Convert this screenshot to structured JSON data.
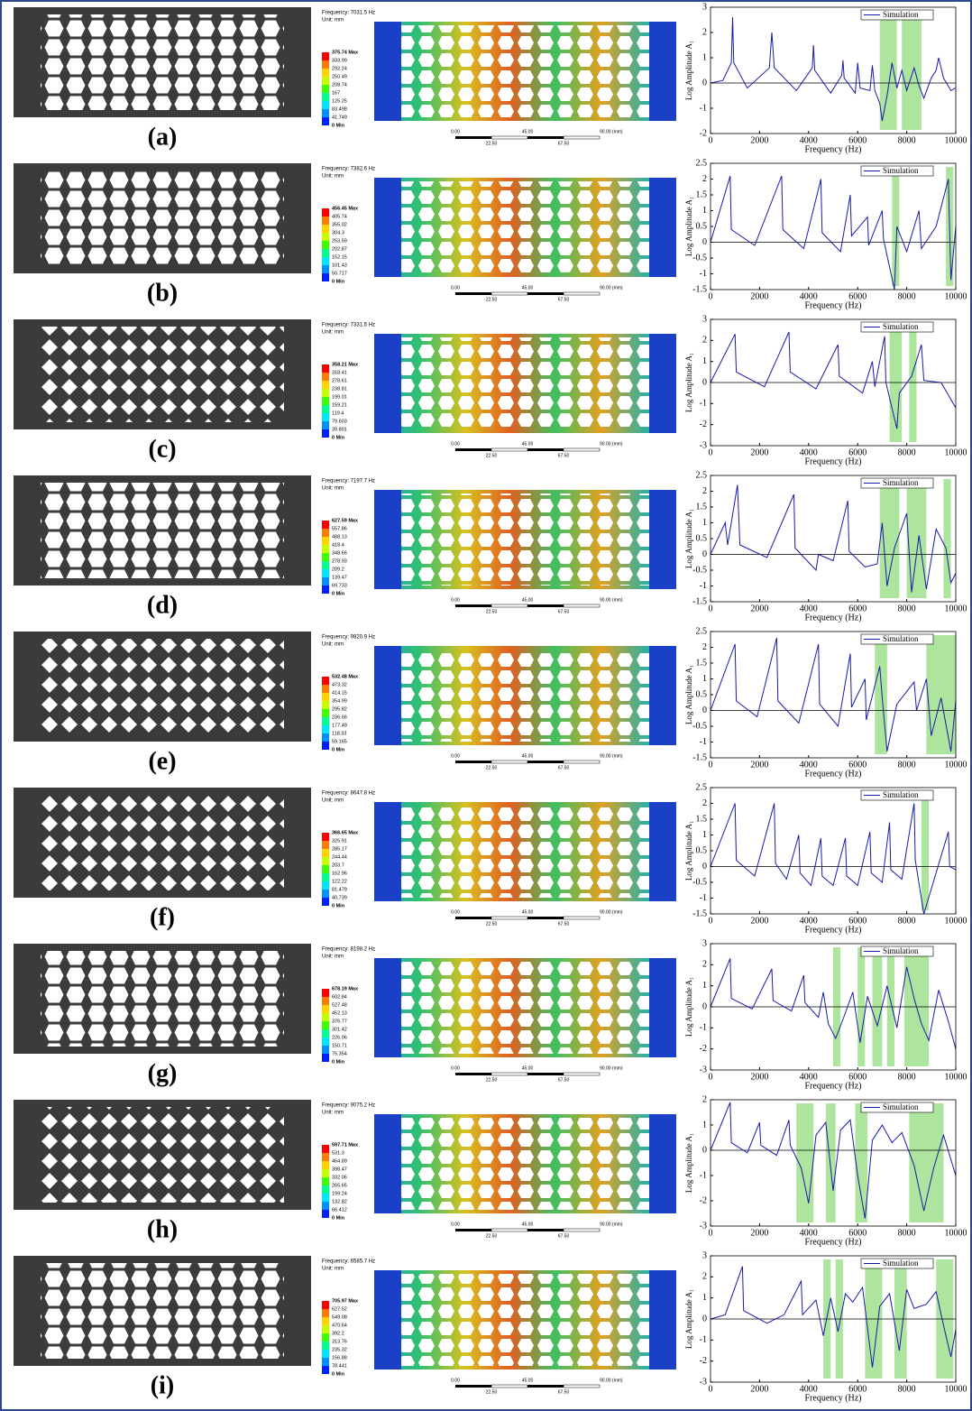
{
  "shared": {
    "unit": "Unit: mm",
    "scale_top": [
      "0.00",
      "45.00",
      "90.00 (mm)"
    ],
    "scale_bottom": [
      "22.50",
      "67.50"
    ],
    "legend_name": "Simulation",
    "x_label": "Frequency (Hz)",
    "y_label": "Log Amplitude A₁"
  },
  "panels": [
    {
      "label": "(a)",
      "frequency": "Frequency: 7031.5 Hz",
      "colorbar": [
        "375.74 Max",
        "333.99",
        "292.24",
        "250.49",
        "208.74",
        "167",
        "125.25",
        "83.498",
        "41.749",
        "0 Min"
      ],
      "chart": {
        "type": "line",
        "xlim": [
          0,
          10000
        ],
        "xticks": [
          0,
          2000,
          4000,
          6000,
          8000,
          10000
        ],
        "ylim": [
          -2,
          3
        ],
        "yticks": [
          -2,
          -1,
          0,
          1,
          2,
          3
        ],
        "bands": [
          [
            6900,
            7600
          ],
          [
            7800,
            8600
          ]
        ],
        "x": [
          0,
          500,
          850,
          900,
          950,
          1500,
          2400,
          2500,
          2600,
          3500,
          4150,
          4200,
          4250,
          4900,
          5350,
          5400,
          5450,
          5900,
          6000,
          6100,
          6500,
          6600,
          6700,
          6900,
          7000,
          7200,
          7400,
          7600,
          7800,
          8000,
          8300,
          8500,
          8700,
          9000,
          9200,
          9300,
          9500,
          9800,
          10000
        ],
        "y": [
          0,
          0.1,
          0.8,
          2.6,
          0.8,
          -0.2,
          0.6,
          2.0,
          0.6,
          -0.3,
          0.6,
          1.5,
          0.5,
          -0.4,
          0.3,
          0.9,
          0.2,
          -0.4,
          0.8,
          -0.2,
          -0.3,
          0.7,
          -0.3,
          -0.8,
          -1.5,
          -0.5,
          0.8,
          -0.2,
          0.5,
          -0.3,
          0.6,
          -0.1,
          -0.6,
          0.2,
          0.5,
          1.0,
          0.2,
          -0.3,
          -0.2
        ]
      }
    },
    {
      "label": "(b)",
      "frequency": "Frequency: 7382.6 Hz",
      "colorbar": [
        "456.45 Max",
        "405.74",
        "355.02",
        "304.3",
        "253.59",
        "202.87",
        "152.15",
        "101.43",
        "50.717",
        "0 Min"
      ],
      "chart": {
        "type": "line",
        "xlim": [
          0,
          10000
        ],
        "xticks": [
          0,
          2000,
          4000,
          6000,
          8000,
          10000
        ],
        "ylim": [
          -1.5,
          2.5
        ],
        "yticks": [
          -1.5,
          -1,
          -0.5,
          0,
          0.5,
          1,
          1.5,
          2,
          2.5
        ],
        "bands": [
          [
            7400,
            7700
          ],
          [
            9600,
            9900
          ]
        ],
        "x": [
          0,
          800,
          850,
          1800,
          2900,
          2950,
          3800,
          4500,
          4550,
          5300,
          5700,
          5750,
          6400,
          6450,
          7000,
          7050,
          7500,
          7600,
          8000,
          8500,
          8600,
          9200,
          9700,
          9800,
          10000
        ],
        "y": [
          0,
          2.1,
          0.4,
          -0.1,
          2.1,
          0.4,
          -0.2,
          2.0,
          0.3,
          -0.3,
          1.5,
          0.2,
          0.8,
          -0.1,
          1.0,
          0.1,
          -1.5,
          0.5,
          -0.3,
          1.0,
          -0.2,
          0.5,
          2.0,
          -1.2,
          0.5
        ]
      }
    },
    {
      "label": "(c)",
      "frequency": "Frequency: 7331.5 Hz",
      "colorbar": [
        "358.21 Max",
        "318.41",
        "278.61",
        "238.81",
        "199.01",
        "159.21",
        "119.4",
        "79.603",
        "39.801",
        "0 Min"
      ],
      "chart": {
        "type": "line",
        "xlim": [
          0,
          10000
        ],
        "xticks": [
          0,
          2000,
          4000,
          6000,
          8000,
          10000
        ],
        "ylim": [
          -3,
          3
        ],
        "yticks": [
          -3,
          -2,
          -1,
          0,
          1,
          2,
          3
        ],
        "bands": [
          [
            7300,
            7800
          ],
          [
            8100,
            8400
          ]
        ],
        "x": [
          0,
          1000,
          1050,
          2200,
          3200,
          3250,
          4300,
          5200,
          5250,
          6200,
          6600,
          6700,
          7100,
          7150,
          7600,
          7700,
          8200,
          8600,
          8700,
          9400,
          10000
        ],
        "y": [
          0,
          2.3,
          0.5,
          -0.2,
          2.4,
          0.5,
          -0.3,
          1.8,
          0.3,
          -0.5,
          1.0,
          -0.2,
          2.2,
          0,
          -2.2,
          -0.5,
          0.3,
          1.8,
          0.1,
          0,
          -1.2
        ]
      }
    },
    {
      "label": "(d)",
      "frequency": "Frequency: 7197.7 Hz",
      "colorbar": [
        "627.59 Max",
        "557.86",
        "488.13",
        "418.4",
        "348.66",
        "278.93",
        "209.2",
        "139.47",
        "69.733",
        "0 Min"
      ],
      "chart": {
        "type": "line",
        "xlim": [
          0,
          10000
        ],
        "xticks": [
          0,
          2000,
          4000,
          6000,
          8000,
          10000
        ],
        "ylim": [
          -1.5,
          2.5
        ],
        "yticks": [
          -1.5,
          -1,
          -0.5,
          0,
          0.5,
          1,
          1.5,
          2,
          2.5
        ],
        "bands": [
          [
            6900,
            7700
          ],
          [
            8000,
            8800
          ],
          [
            9500,
            9800
          ]
        ],
        "x": [
          0,
          600,
          700,
          1100,
          1200,
          2300,
          3400,
          3450,
          4300,
          4400,
          5000,
          5600,
          5650,
          6300,
          6800,
          7000,
          7200,
          7500,
          8000,
          8200,
          8500,
          8800,
          9200,
          9600,
          9800,
          10000
        ],
        "y": [
          0,
          1.0,
          0.3,
          2.2,
          0.3,
          -0.1,
          1.9,
          0.2,
          -0.5,
          0,
          -0.2,
          1.7,
          0.1,
          -0.4,
          -0.3,
          1.0,
          -1.0,
          0.2,
          1.3,
          -1.2,
          0.6,
          -1.1,
          0.8,
          0.2,
          -0.9,
          -0.6
        ]
      }
    },
    {
      "label": "(e)",
      "frequency": "Frequency: 9820.9 Hz",
      "colorbar": [
        "532.48 Max",
        "473.32",
        "414.15",
        "354.99",
        "295.82",
        "236.66",
        "177.49",
        "118.33",
        "59.165",
        "0 Min"
      ],
      "chart": {
        "type": "line",
        "xlim": [
          0,
          10000
        ],
        "xticks": [
          0,
          2000,
          4000,
          6000,
          8000,
          10000
        ],
        "ylim": [
          -1.5,
          2.5
        ],
        "yticks": [
          -1.5,
          -1,
          -0.5,
          0,
          0.5,
          1,
          1.5,
          2,
          2.5
        ],
        "bands": [
          [
            6700,
            7200
          ],
          [
            8800,
            10000
          ]
        ],
        "x": [
          0,
          1000,
          1050,
          1900,
          2700,
          2750,
          3600,
          4400,
          4450,
          5200,
          5700,
          5750,
          6300,
          6350,
          6900,
          7000,
          7200,
          7600,
          8300,
          8400,
          8800,
          9000,
          9400,
          9800,
          10000
        ],
        "y": [
          0,
          2.1,
          0.3,
          -0.2,
          2.3,
          0.3,
          -0.4,
          2.1,
          0.2,
          -0.5,
          1.8,
          0.1,
          1.0,
          -0.3,
          1.4,
          0.4,
          -1.3,
          0.2,
          0.9,
          0,
          1.0,
          -0.8,
          0.4,
          -1.3,
          0.3
        ]
      }
    },
    {
      "label": "(f)",
      "frequency": "Frequency: 8647.8 Hz",
      "colorbar": [
        "366.65 Max",
        "325.91",
        "285.17",
        "244.44",
        "203.7",
        "162.96",
        "122.22",
        "81.479",
        "40.739",
        "0 Min"
      ],
      "chart": {
        "type": "line",
        "xlim": [
          0,
          10000
        ],
        "xticks": [
          0,
          2000,
          4000,
          6000,
          8000,
          10000
        ],
        "ylim": [
          -1.5,
          2.5
        ],
        "yticks": [
          -1.5,
          -1,
          -0.5,
          0,
          0.5,
          1,
          1.5,
          2,
          2.5
        ],
        "bands": [
          [
            8600,
            8900
          ]
        ],
        "x": [
          0,
          1000,
          1050,
          1800,
          2600,
          2650,
          3100,
          3600,
          3650,
          4100,
          4500,
          4550,
          5000,
          5500,
          5550,
          6000,
          6500,
          6550,
          7000,
          7300,
          7350,
          7800,
          8300,
          8350,
          8700,
          9200,
          9700,
          9750,
          10000
        ],
        "y": [
          0,
          2.0,
          0.2,
          -0.3,
          2.0,
          0.1,
          -0.4,
          1.0,
          -0.2,
          -0.6,
          0.9,
          -0.3,
          -0.6,
          0.9,
          -0.3,
          -0.6,
          1.1,
          -0.2,
          -0.5,
          1.4,
          -0.1,
          -0.4,
          2.0,
          0.2,
          -1.5,
          -0.2,
          1.1,
          0,
          -0.1
        ]
      }
    },
    {
      "label": "(g)",
      "frequency": "Frequency: 8198.2 Hz",
      "colorbar": [
        "678.19 Max",
        "602.84",
        "527.48",
        "452.13",
        "376.77",
        "301.42",
        "226.06",
        "150.71",
        "75.354",
        "0 Min"
      ],
      "chart": {
        "type": "line",
        "xlim": [
          0,
          10000
        ],
        "xticks": [
          0,
          2000,
          4000,
          6000,
          8000,
          10000
        ],
        "ylim": [
          -3,
          3
        ],
        "yticks": [
          -3,
          -2,
          -1,
          0,
          1,
          2,
          3
        ],
        "bands": [
          [
            5000,
            5300
          ],
          [
            6000,
            6300
          ],
          [
            6600,
            7000
          ],
          [
            7200,
            7500
          ],
          [
            7900,
            8900
          ]
        ],
        "x": [
          0,
          800,
          850,
          1700,
          2500,
          2550,
          3300,
          3800,
          3850,
          4400,
          4600,
          4800,
          5100,
          5400,
          5800,
          6100,
          6400,
          6800,
          7200,
          7600,
          8000,
          8300,
          8600,
          8900,
          9300,
          9700,
          10000
        ],
        "y": [
          0,
          2.3,
          0.4,
          -0.1,
          1.8,
          0.3,
          -0.2,
          1.5,
          0.2,
          -0.5,
          0.7,
          -0.8,
          -1.5,
          -0.6,
          0.7,
          -1.7,
          0.5,
          -0.9,
          1.0,
          -1.0,
          1.9,
          0.4,
          -0.8,
          -1.6,
          0.8,
          -0.7,
          -2.0
        ]
      }
    },
    {
      "label": "(h)",
      "frequency": "Frequency: 9075.2 Hz",
      "colorbar": [
        "597.71 Max",
        "531.3",
        "464.89",
        "398.47",
        "332.06",
        "265.65",
        "199.24",
        "132.82",
        "66.412",
        "0 Min"
      ],
      "chart": {
        "type": "line",
        "xlim": [
          0,
          10000
        ],
        "xticks": [
          0,
          2000,
          4000,
          6000,
          8000,
          10000
        ],
        "ylim": [
          -3,
          2
        ],
        "yticks": [
          -3,
          -2,
          -1,
          0,
          1,
          2
        ],
        "bands": [
          [
            3500,
            4200
          ],
          [
            4700,
            5100
          ],
          [
            5900,
            6400
          ],
          [
            8100,
            9500
          ]
        ],
        "x": [
          0,
          800,
          850,
          1500,
          2000,
          2050,
          2700,
          3200,
          3250,
          3700,
          4000,
          4300,
          4700,
          5000,
          5300,
          5700,
          6000,
          6300,
          6600,
          7000,
          7400,
          7800,
          8300,
          8700,
          9100,
          9500,
          10000
        ],
        "y": [
          0,
          1.9,
          0.3,
          -0.1,
          1.1,
          0.2,
          -0.2,
          1.2,
          0.2,
          -0.7,
          -2.1,
          0.6,
          1.1,
          -1.6,
          0.8,
          1.2,
          -1.0,
          -2.7,
          0.4,
          1.0,
          0.3,
          0.7,
          -0.6,
          -2.4,
          -0.7,
          0.6,
          -1.0
        ]
      }
    },
    {
      "label": "(i)",
      "frequency": "Frequency: 6585.7 Hz",
      "colorbar": [
        "705.97 Max",
        "627.52",
        "549.08",
        "470.64",
        "392.2",
        "313.76",
        "235.32",
        "156.88",
        "78.441",
        "0 Min"
      ],
      "chart": {
        "type": "line",
        "xlim": [
          0,
          10000
        ],
        "xticks": [
          0,
          2000,
          4000,
          6000,
          8000,
          10000
        ],
        "ylim": [
          -3,
          3
        ],
        "yticks": [
          -3,
          -2,
          -1,
          0,
          1,
          2,
          3
        ],
        "bands": [
          [
            4600,
            4900
          ],
          [
            5100,
            5400
          ],
          [
            6300,
            7000
          ],
          [
            7500,
            8000
          ],
          [
            9200,
            9900
          ]
        ],
        "x": [
          0,
          600,
          1300,
          1350,
          2300,
          3000,
          3700,
          3750,
          4300,
          4600,
          4900,
          5200,
          5500,
          5800,
          6200,
          6600,
          6900,
          7300,
          7700,
          8000,
          8300,
          8800,
          9200,
          9500,
          9800,
          10000
        ],
        "y": [
          0,
          0.2,
          2.5,
          0.4,
          -0.2,
          0.2,
          1.8,
          0.2,
          0.9,
          -0.8,
          1.0,
          -0.6,
          1.2,
          0.8,
          1.5,
          -2.3,
          0.6,
          1.2,
          -1.5,
          1.4,
          0.5,
          0.7,
          1.3,
          -0.3,
          -1.8,
          -0.5
        ]
      }
    }
  ]
}
